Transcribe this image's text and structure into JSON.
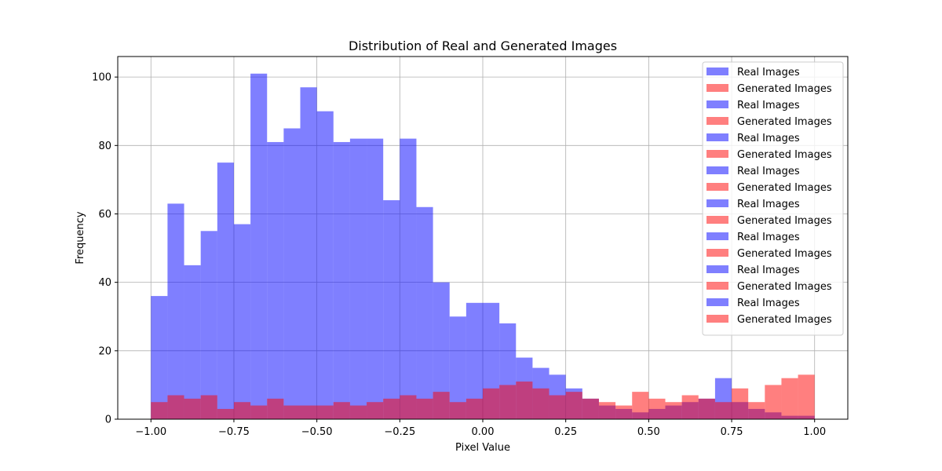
{
  "chart_data": {
    "type": "bar",
    "title": "Distribution of Real and Generated Images",
    "xlabel": "Pixel Value",
    "ylabel": "Frequency",
    "xlim": [
      -1.1,
      1.1
    ],
    "ylim": [
      0,
      106
    ],
    "xticks": [
      -1.0,
      -0.75,
      -0.5,
      -0.25,
      0.0,
      0.25,
      0.5,
      0.75,
      1.0
    ],
    "xtick_labels": [
      "−1.00",
      "−0.75",
      "−0.50",
      "−0.25",
      "0.00",
      "0.25",
      "0.50",
      "0.75",
      "1.00"
    ],
    "yticks": [
      0,
      20,
      40,
      60,
      80,
      100
    ],
    "ytick_labels": [
      "0",
      "20",
      "40",
      "60",
      "80",
      "100"
    ],
    "grid": true,
    "legend_position": "top-right",
    "colors": {
      "real": "#0000ff",
      "generated": "#ff0000"
    },
    "series": [
      {
        "name": "Real Images",
        "color": "#0000ff",
        "bin_edges": [
          -1.0,
          -0.95,
          -0.9,
          -0.85,
          -0.8,
          -0.75,
          -0.7,
          -0.65,
          -0.6,
          -0.55,
          -0.5,
          -0.45,
          -0.4,
          -0.35,
          -0.3,
          -0.25,
          -0.2,
          -0.15,
          -0.1,
          -0.05,
          0.0,
          0.05,
          0.1,
          0.15,
          0.2,
          0.25,
          0.3,
          0.35,
          0.4,
          0.45,
          0.5,
          0.55,
          0.6,
          0.65,
          0.7,
          0.75,
          0.8,
          0.85,
          0.9,
          0.95,
          1.0
        ],
        "values": [
          36,
          63,
          45,
          55,
          75,
          57,
          101,
          81,
          85,
          97,
          90,
          81,
          82,
          82,
          64,
          82,
          62,
          40,
          30,
          34,
          34,
          28,
          18,
          15,
          13,
          9,
          6,
          4,
          3,
          2,
          3,
          4,
          5,
          6,
          12,
          5,
          3,
          2,
          1,
          1
        ]
      },
      {
        "name": "Generated Images",
        "color": "#ff0000",
        "bin_edges": [
          -1.0,
          -0.95,
          -0.9,
          -0.85,
          -0.8,
          -0.75,
          -0.7,
          -0.65,
          -0.6,
          -0.55,
          -0.5,
          -0.45,
          -0.4,
          -0.35,
          -0.3,
          -0.25,
          -0.2,
          -0.15,
          -0.1,
          -0.05,
          0.0,
          0.05,
          0.1,
          0.15,
          0.2,
          0.25,
          0.3,
          0.35,
          0.4,
          0.45,
          0.5,
          0.55,
          0.6,
          0.65,
          0.7,
          0.75,
          0.8,
          0.85,
          0.9,
          0.95,
          1.0
        ],
        "values": [
          5,
          7,
          6,
          7,
          3,
          5,
          4,
          6,
          4,
          4,
          4,
          5,
          4,
          5,
          6,
          7,
          6,
          8,
          5,
          6,
          9,
          10,
          11,
          9,
          7,
          8,
          6,
          5,
          4,
          8,
          6,
          5,
          7,
          6,
          5,
          9,
          5,
          10,
          12,
          13
        ]
      }
    ],
    "legend_entries": [
      "Real Images",
      "Generated Images",
      "Real Images",
      "Generated Images",
      "Real Images",
      "Generated Images",
      "Real Images",
      "Generated Images",
      "Real Images",
      "Generated Images",
      "Real Images",
      "Generated Images",
      "Real Images",
      "Generated Images",
      "Real Images",
      "Generated Images"
    ]
  }
}
